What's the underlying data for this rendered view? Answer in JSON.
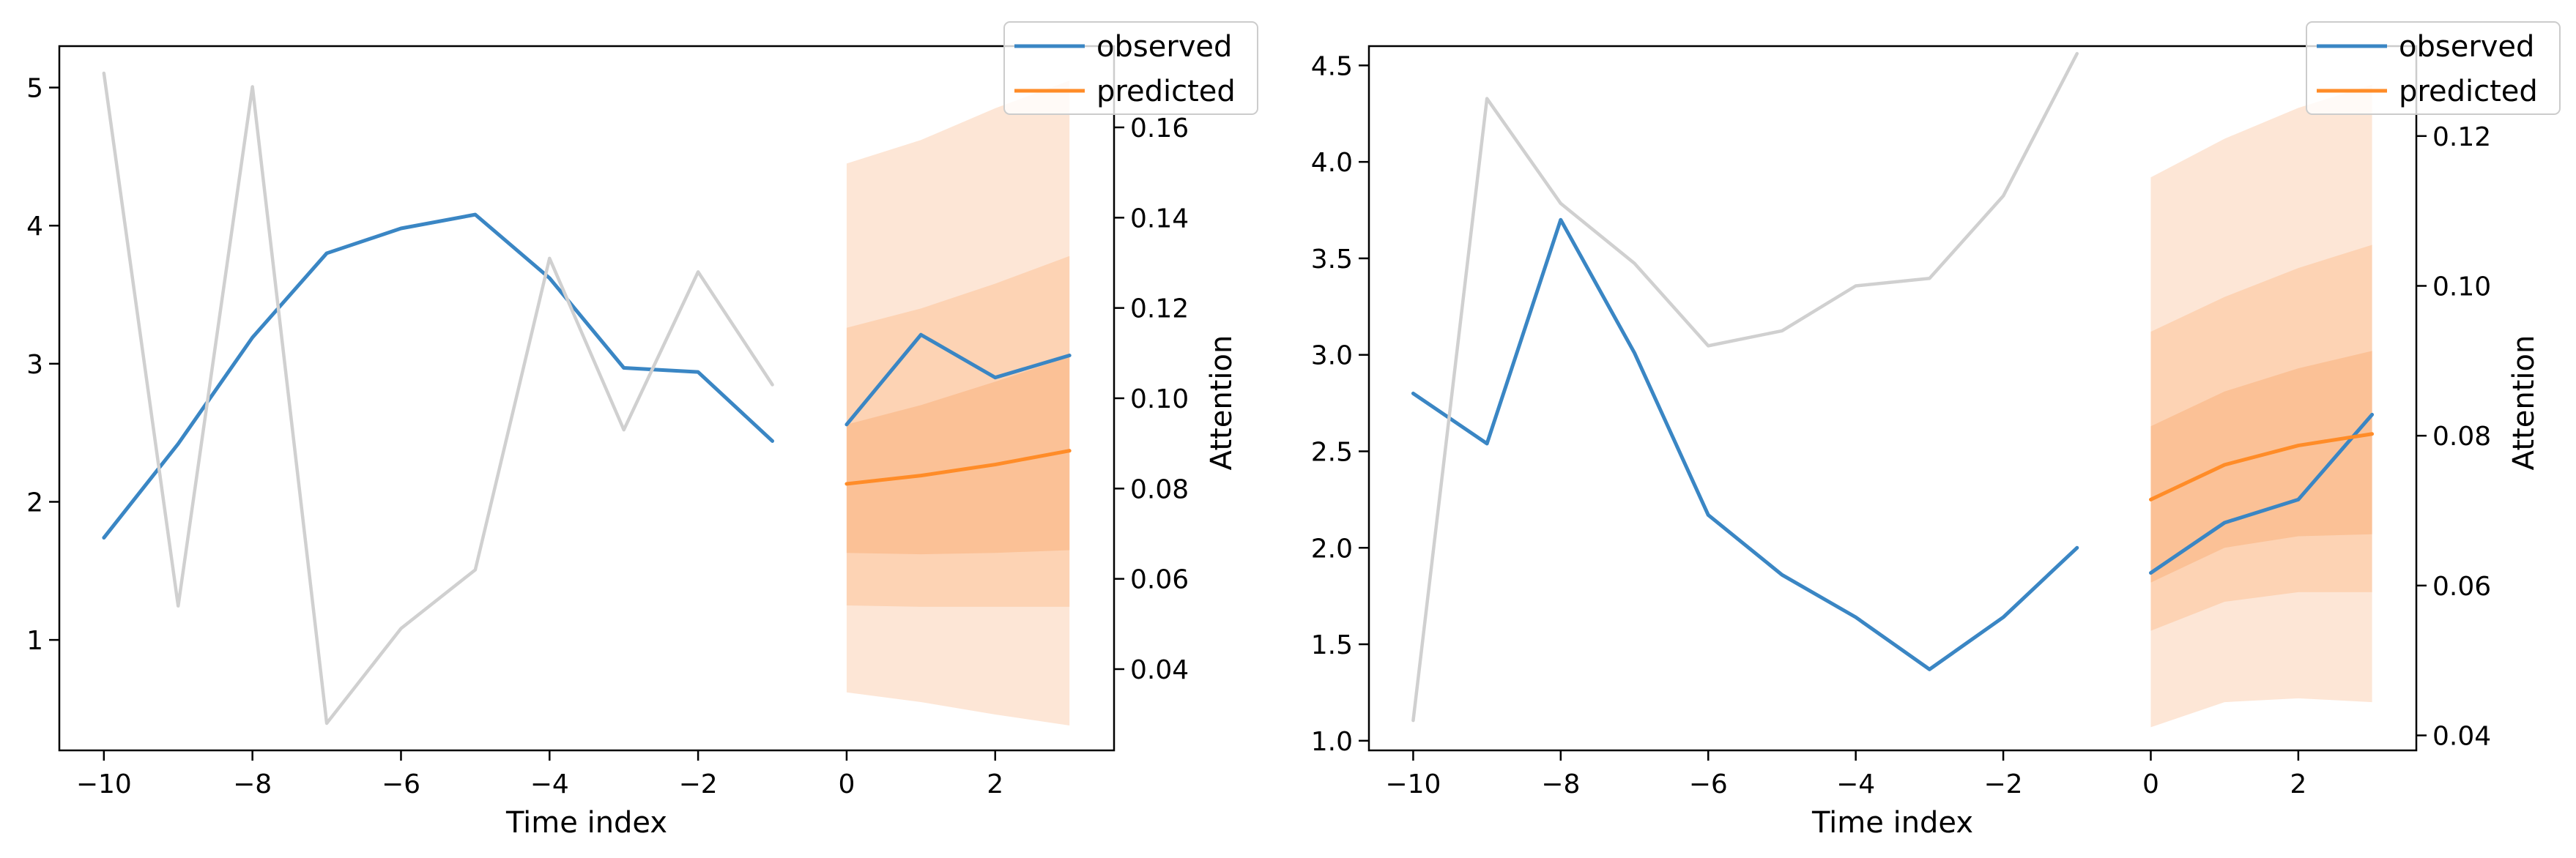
{
  "colors": {
    "observed": "#3a86c4",
    "predicted": "#ff8c28",
    "attention": "#d0d0d0",
    "band_outer": "#fde6d6",
    "band_mid": "#fdd3b4",
    "band_inner": "#fbc196"
  },
  "chart_data": [
    {
      "type": "line",
      "title": "",
      "xlabel": "Time index",
      "ylabel": "",
      "ylabel_right": "Attention",
      "xlim": [
        -10.6,
        3.6
      ],
      "ylim": [
        0.2,
        5.3
      ],
      "ylim_right": [
        0.022,
        0.178
      ],
      "xticks": [
        -10,
        -8,
        -6,
        -4,
        -2,
        0,
        2
      ],
      "xtick_labels": [
        "−10",
        "−8",
        "−6",
        "−4",
        "−2",
        "0",
        "2"
      ],
      "yticks": [
        1,
        2,
        3,
        4,
        5
      ],
      "ytick_labels": [
        "1",
        "2",
        "3",
        "4",
        "5"
      ],
      "yticks_right": [
        0.04,
        0.06,
        0.08,
        0.1,
        0.12,
        0.14,
        0.16
      ],
      "ytick_labels_right": [
        "0.04",
        "0.06",
        "0.08",
        "0.10",
        "0.12",
        "0.14",
        "0.16"
      ],
      "legend": {
        "position": "top-right",
        "entries": [
          "observed",
          "predicted"
        ]
      },
      "series": [
        {
          "name": "observed",
          "x": [
            -10,
            -9,
            -8,
            -7,
            -6,
            -5,
            -4,
            -3,
            -2,
            -1
          ],
          "values": [
            1.74,
            2.42,
            3.19,
            3.8,
            3.98,
            4.08,
            3.62,
            2.97,
            2.94,
            2.44
          ]
        },
        {
          "name": "observed",
          "x": [
            0,
            1,
            2,
            3
          ],
          "values": [
            2.56,
            3.21,
            2.9,
            3.06
          ]
        },
        {
          "name": "predicted",
          "x": [
            0,
            1,
            2,
            3
          ],
          "values": [
            2.13,
            2.19,
            2.27,
            2.37
          ]
        },
        {
          "name": "attention",
          "axis": "right",
          "x": [
            -10,
            -9,
            -8,
            -7,
            -6,
            -5,
            -4,
            -3,
            -2,
            -1
          ],
          "values": [
            0.172,
            0.054,
            0.169,
            0.028,
            0.049,
            0.062,
            0.131,
            0.093,
            0.128,
            0.103
          ]
        }
      ],
      "bands": [
        {
          "name": "outer",
          "x": [
            0,
            1,
            2,
            3
          ],
          "lower": [
            0.62,
            0.55,
            0.46,
            0.38
          ],
          "upper": [
            4.45,
            4.62,
            4.85,
            5.05
          ]
        },
        {
          "name": "mid",
          "x": [
            0,
            1,
            2,
            3
          ],
          "lower": [
            1.25,
            1.24,
            1.24,
            1.24
          ],
          "upper": [
            3.26,
            3.4,
            3.58,
            3.78
          ]
        },
        {
          "name": "inner",
          "x": [
            0,
            1,
            2,
            3
          ],
          "lower": [
            1.63,
            1.62,
            1.63,
            1.65
          ],
          "upper": [
            2.56,
            2.7,
            2.87,
            3.05
          ]
        }
      ]
    },
    {
      "type": "line",
      "title": "",
      "xlabel": "Time index",
      "ylabel": "",
      "ylabel_right": "Attention",
      "xlim": [
        -10.6,
        3.6
      ],
      "ylim": [
        0.95,
        4.6
      ],
      "ylim_right": [
        0.038,
        0.132
      ],
      "xticks": [
        -10,
        -8,
        -6,
        -4,
        -2,
        0,
        2
      ],
      "xtick_labels": [
        "−10",
        "−8",
        "−6",
        "−4",
        "−2",
        "0",
        "2"
      ],
      "yticks": [
        1.0,
        1.5,
        2.0,
        2.5,
        3.0,
        3.5,
        4.0,
        4.5
      ],
      "ytick_labels": [
        "1.0",
        "1.5",
        "2.0",
        "2.5",
        "3.0",
        "3.5",
        "4.0",
        "4.5"
      ],
      "yticks_right": [
        0.04,
        0.06,
        0.08,
        0.1,
        0.12
      ],
      "ytick_labels_right": [
        "0.04",
        "0.06",
        "0.08",
        "0.10",
        "0.12"
      ],
      "legend": {
        "position": "top-right",
        "entries": [
          "observed",
          "predicted"
        ]
      },
      "series": [
        {
          "name": "observed",
          "x": [
            -10,
            -9,
            -8,
            -7,
            -6,
            -5,
            -4,
            -3,
            -2,
            -1
          ],
          "values": [
            2.8,
            2.54,
            3.7,
            3.01,
            2.17,
            1.86,
            1.64,
            1.37,
            1.64,
            2.0
          ]
        },
        {
          "name": "observed",
          "x": [
            0,
            1,
            2,
            3
          ],
          "values": [
            1.87,
            2.13,
            2.25,
            2.69
          ]
        },
        {
          "name": "predicted",
          "x": [
            0,
            1,
            2,
            3
          ],
          "values": [
            2.25,
            2.43,
            2.53,
            2.59
          ]
        },
        {
          "name": "attention",
          "axis": "right",
          "x": [
            -10,
            -9,
            -8,
            -7,
            -6,
            -5,
            -4,
            -3,
            -2,
            -1
          ],
          "values": [
            0.042,
            0.125,
            0.111,
            0.103,
            0.092,
            0.094,
            0.1,
            0.101,
            0.112,
            0.131
          ]
        }
      ],
      "bands": [
        {
          "name": "outer",
          "x": [
            0,
            1,
            2,
            3
          ],
          "lower": [
            1.07,
            1.2,
            1.22,
            1.2
          ],
          "upper": [
            3.92,
            4.12,
            4.28,
            4.4
          ]
        },
        {
          "name": "mid",
          "x": [
            0,
            1,
            2,
            3
          ],
          "lower": [
            1.57,
            1.72,
            1.77,
            1.77
          ],
          "upper": [
            3.12,
            3.3,
            3.45,
            3.57
          ]
        },
        {
          "name": "inner",
          "x": [
            0,
            1,
            2,
            3
          ],
          "lower": [
            1.82,
            2.0,
            2.06,
            2.07
          ],
          "upper": [
            2.63,
            2.81,
            2.93,
            3.02
          ]
        }
      ]
    }
  ]
}
